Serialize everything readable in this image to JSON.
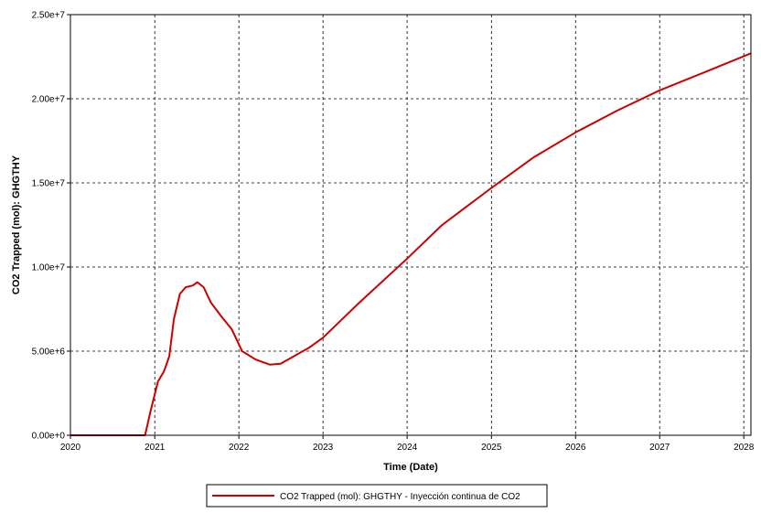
{
  "chart_data": {
    "type": "line",
    "title": "",
    "xlabel": "Time (Date)",
    "ylabel": "CO2 Trapped (mol): GHGTHY",
    "xlim": [
      "2020-01-01",
      "2028-02-01"
    ],
    "ylim": [
      0,
      25000000
    ],
    "x_ticks": [
      "2020",
      "2021",
      "2022",
      "2023",
      "2024",
      "2025",
      "2026",
      "2027",
      "2028"
    ],
    "y_ticks": [
      {
        "value": 0,
        "label": "0.00e+0"
      },
      {
        "value": 5000000,
        "label": "5.00e+6"
      },
      {
        "value": 10000000,
        "label": "1.00e+7"
      },
      {
        "value": 15000000,
        "label": "1.50e+7"
      },
      {
        "value": 20000000,
        "label": "2.00e+7"
      },
      {
        "value": 25000000,
        "label": "2.50e+7"
      }
    ],
    "grid": true,
    "legend_position": "bottom",
    "series": [
      {
        "name": "CO2 Trapped (mol): GHGTHY - Inyección continua de CO2",
        "color": "#cc0000",
        "x": [
          "2020-01-01",
          "2020-06-01",
          "2020-11-20",
          "2020-12-15",
          "2021-01-15",
          "2021-02-10",
          "2021-03-05",
          "2021-03-25",
          "2021-04-20",
          "2021-05-15",
          "2021-06-15",
          "2021-07-05",
          "2021-08-01",
          "2021-09-01",
          "2021-10-15",
          "2021-12-01",
          "2022-01-15",
          "2022-03-15",
          "2022-05-15",
          "2022-07-01",
          "2022-08-15",
          "2022-11-01",
          "2023-01-01",
          "2023-06-01",
          "2024-01-01",
          "2024-06-01",
          "2025-01-01",
          "2025-07-01",
          "2026-01-01",
          "2026-07-01",
          "2027-01-01",
          "2027-07-01",
          "2028-02-01"
        ],
        "values": [
          0,
          0,
          0,
          1500000,
          3200000,
          3800000,
          4700000,
          6900000,
          8400000,
          8800000,
          8900000,
          9100000,
          8800000,
          7900000,
          7100000,
          6300000,
          5000000,
          4500000,
          4200000,
          4250000,
          4600000,
          5200000,
          5800000,
          7800000,
          10500000,
          12500000,
          14700000,
          16500000,
          18000000,
          19300000,
          20500000,
          21500000,
          22700000
        ]
      }
    ]
  }
}
